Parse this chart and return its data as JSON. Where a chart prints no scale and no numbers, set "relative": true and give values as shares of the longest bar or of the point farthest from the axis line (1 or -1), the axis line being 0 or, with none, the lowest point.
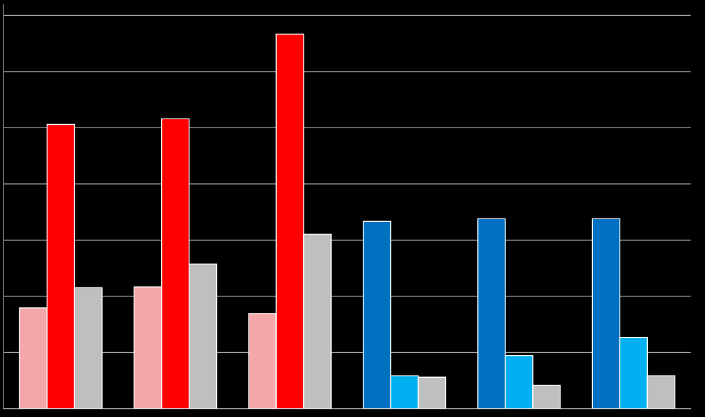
{
  "chart_data": {
    "type": "bar",
    "relative": true,
    "grid": "y",
    "categories": [
      null,
      null,
      null,
      null,
      null,
      null
    ],
    "series": [
      {
        "colors": [
          "#f4a7a9",
          "#f4a7a9",
          "#f4a7a9",
          "#0070c0",
          "#0070c0",
          "#0070c0"
        ],
        "values": [
          0.269,
          0.325,
          0.254,
          0.5,
          0.507,
          0.507
        ]
      },
      {
        "colors": [
          "#ff0000",
          "#ff0000",
          "#ff0000",
          "#00b0f0",
          "#00b0f0",
          "#00b0f0"
        ],
        "values": [
          0.759,
          0.774,
          1,
          0.088,
          0.142,
          0.19
        ]
      },
      {
        "colors": [
          "#bfbfbf",
          "#bfbfbf",
          "#bfbfbf",
          "#bfbfbf",
          "#bfbfbf",
          "#bfbfbf"
        ],
        "values": [
          0.323,
          0.386,
          0.466,
          0.084,
          0.062,
          0.088
        ]
      }
    ]
  }
}
